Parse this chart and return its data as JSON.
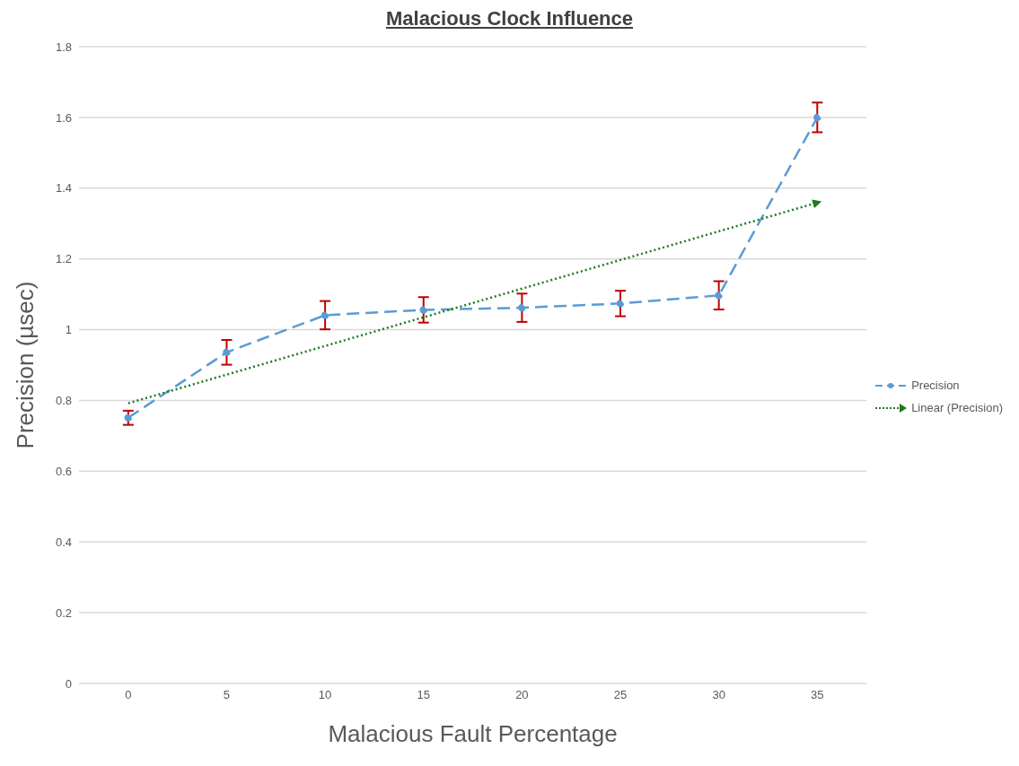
{
  "chart_data": {
    "type": "line",
    "title": "Malacious Clock Influence",
    "xlabel": "Malacious Fault Percentage",
    "ylabel": "Precision (µsec)",
    "x": [
      0,
      5,
      10,
      15,
      20,
      25,
      30,
      35
    ],
    "series": [
      {
        "name": "Precision",
        "color": "#5b9bd5",
        "values": [
          0.751,
          0.936,
          1.041,
          1.056,
          1.062,
          1.074,
          1.097,
          1.6
        ],
        "errors": [
          0.02,
          0.035,
          0.04,
          0.036,
          0.04,
          0.036,
          0.04,
          0.042
        ],
        "marker": "circle",
        "line_style": "dashed"
      },
      {
        "name": "Linear (Precision)",
        "type": "line",
        "color": "#1e7b1e",
        "x": [
          0,
          35
        ],
        "values": [
          0.792,
          1.359
        ],
        "marker": "none",
        "line_style": "dotted"
      }
    ],
    "xlim": [
      -2.5,
      37.5
    ],
    "xticks": [
      0,
      5,
      10,
      15,
      20,
      25,
      30,
      35
    ],
    "ylim": [
      0,
      1.8
    ],
    "yticks": [
      0,
      0.2,
      0.4,
      0.6,
      0.8,
      1,
      1.2,
      1.4,
      1.6,
      1.8
    ],
    "grid": "y",
    "legend": "right"
  }
}
